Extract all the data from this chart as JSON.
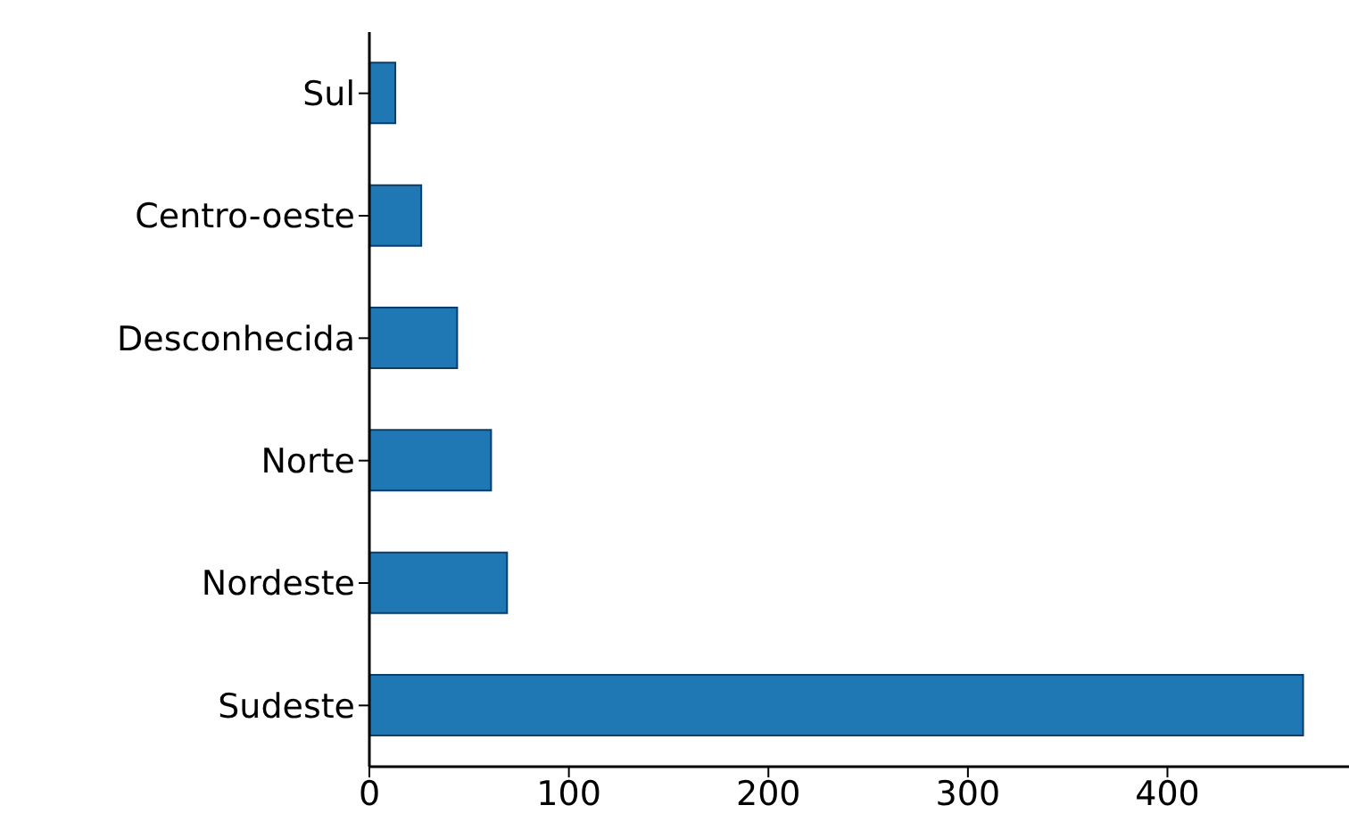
{
  "chart_data": {
    "type": "bar",
    "orientation": "horizontal",
    "categories": [
      "Sul",
      "Centro-oeste",
      "Desconhecida",
      "Norte",
      "Nordeste",
      "Sudeste"
    ],
    "values": [
      13,
      26,
      44,
      61,
      69,
      468
    ],
    "color": "#1f77b4",
    "xlim": [
      0,
      491
    ],
    "xticks": [
      0,
      100,
      200,
      300,
      400
    ]
  }
}
